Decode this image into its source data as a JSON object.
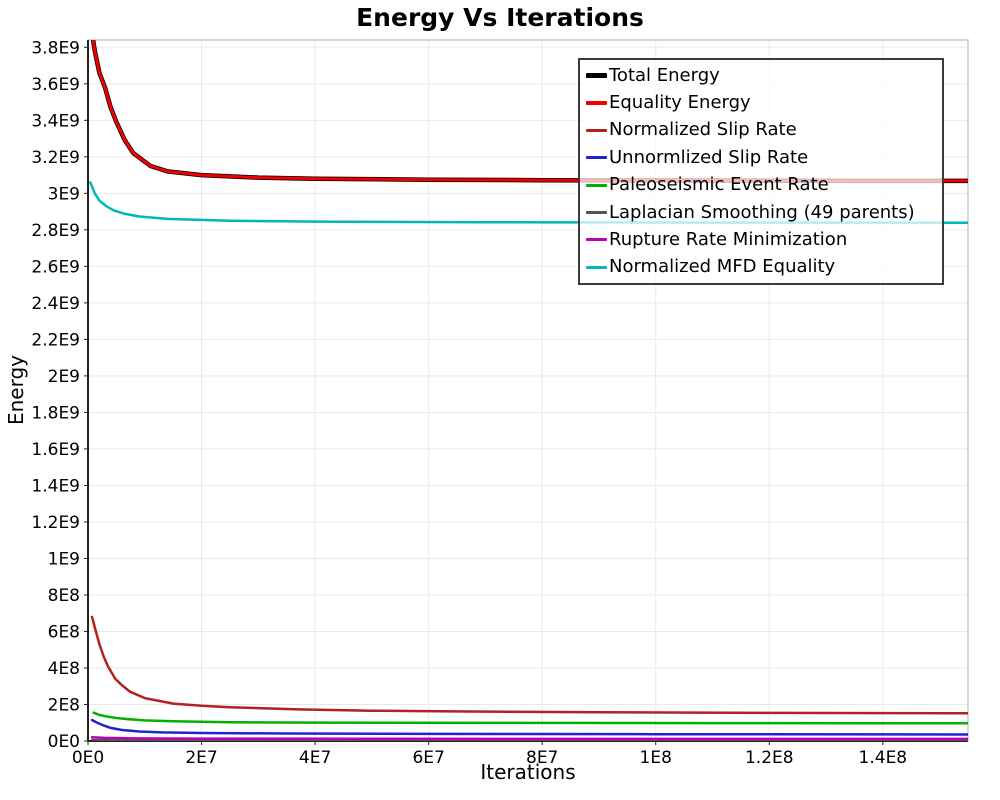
{
  "title": "Energy Vs Iterations",
  "chart_data": {
    "type": "line",
    "title": "Energy Vs Iterations",
    "xlabel": "Iterations",
    "ylabel": "Energy",
    "x_range": [
      0,
      155000000.0
    ],
    "y_range": [
      0,
      3840000000.0
    ],
    "grid": true,
    "legend_position": "top-right",
    "axis_color": "#222222",
    "grid_color": "#e9e9e9",
    "frame_color": "#c8c8c8",
    "x_ticks": [
      {
        "value": 0,
        "label": "0E0"
      },
      {
        "value": 20000000.0,
        "label": "2E7"
      },
      {
        "value": 40000000.0,
        "label": "4E7"
      },
      {
        "value": 60000000.0,
        "label": "6E7"
      },
      {
        "value": 80000000.0,
        "label": "8E7"
      },
      {
        "value": 100000000.0,
        "label": "1E8"
      },
      {
        "value": 120000000.0,
        "label": "1.2E8"
      },
      {
        "value": 140000000.0,
        "label": "1.4E8"
      }
    ],
    "y_ticks": [
      {
        "value": 0,
        "label": "0E0"
      },
      {
        "value": 200000000.0,
        "label": "2E8"
      },
      {
        "value": 400000000.0,
        "label": "4E8"
      },
      {
        "value": 600000000.0,
        "label": "6E8"
      },
      {
        "value": 800000000.0,
        "label": "8E8"
      },
      {
        "value": 1000000000.0,
        "label": "1E9"
      },
      {
        "value": 1200000000.0,
        "label": "1.2E9"
      },
      {
        "value": 1400000000.0,
        "label": "1.4E9"
      },
      {
        "value": 1600000000.0,
        "label": "1.6E9"
      },
      {
        "value": 1800000000.0,
        "label": "1.8E9"
      },
      {
        "value": 2000000000.0,
        "label": "2E9"
      },
      {
        "value": 2200000000.0,
        "label": "2.2E9"
      },
      {
        "value": 2400000000.0,
        "label": "2.4E9"
      },
      {
        "value": 2600000000.0,
        "label": "2.6E9"
      },
      {
        "value": 2800000000.0,
        "label": "2.8E9"
      },
      {
        "value": 3000000000.0,
        "label": "3E9"
      },
      {
        "value": 3200000000.0,
        "label": "3.2E9"
      },
      {
        "value": 3400000000.0,
        "label": "3.4E9"
      },
      {
        "value": 3600000000.0,
        "label": "3.6E9"
      },
      {
        "value": 3800000000.0,
        "label": "3.8E9"
      }
    ],
    "series": [
      {
        "id": "total_energy",
        "label": "Total Energy",
        "color": "#000000",
        "width": 4.5,
        "swatch_height": 5,
        "z": 7,
        "points": [
          [
            900000.0,
            3840000000.0
          ],
          [
            1200000.0,
            3780000000.0
          ],
          [
            2000000.0,
            3660000000.0
          ],
          [
            3000000.0,
            3580000000.0
          ],
          [
            4000000.0,
            3470000000.0
          ],
          [
            5000000.0,
            3390000000.0
          ],
          [
            6500000.0,
            3290000000.0
          ],
          [
            8000000.0,
            3220000000.0
          ],
          [
            11000000.0,
            3150000000.0
          ],
          [
            14000000.0,
            3120000000.0
          ],
          [
            20000000.0,
            3100000000.0
          ],
          [
            30000000.0,
            3086000000.0
          ],
          [
            40000000.0,
            3080000000.0
          ],
          [
            60000000.0,
            3075000000.0
          ],
          [
            80000000.0,
            3072000000.0
          ],
          [
            120000000.0,
            3069000000.0
          ],
          [
            155000000.0,
            3068000000.0
          ]
        ]
      },
      {
        "id": "equality_energy",
        "label": "Equality Energy",
        "color": "#ee0000",
        "width": 3,
        "swatch_height": 4,
        "z": 8,
        "points": [
          [
            900000.0,
            3840000000.0
          ],
          [
            1200000.0,
            3780000000.0
          ],
          [
            2000000.0,
            3660000000.0
          ],
          [
            3000000.0,
            3580000000.0
          ],
          [
            4000000.0,
            3470000000.0
          ],
          [
            5000000.0,
            3390000000.0
          ],
          [
            6500000.0,
            3290000000.0
          ],
          [
            8000000.0,
            3220000000.0
          ],
          [
            11000000.0,
            3150000000.0
          ],
          [
            14000000.0,
            3120000000.0
          ],
          [
            20000000.0,
            3100000000.0
          ],
          [
            30000000.0,
            3086000000.0
          ],
          [
            40000000.0,
            3080000000.0
          ],
          [
            60000000.0,
            3075000000.0
          ],
          [
            80000000.0,
            3072000000.0
          ],
          [
            120000000.0,
            3069000000.0
          ],
          [
            155000000.0,
            3068000000.0
          ]
        ]
      },
      {
        "id": "normalized_slip_rate",
        "label": "Normalized Slip Rate",
        "color": "#b22222",
        "width": 2.5,
        "swatch_height": 3,
        "z": 5,
        "points": [
          [
            700000.0,
            680000000.0
          ],
          [
            1400000.0,
            600000000.0
          ],
          [
            2000000.0,
            530000000.0
          ],
          [
            2800000.0,
            460000000.0
          ],
          [
            3500000.0,
            410000000.0
          ],
          [
            4800000.0,
            340000000.0
          ],
          [
            6000000.0,
            305000000.0
          ],
          [
            7400000.0,
            270000000.0
          ],
          [
            10000000.0,
            235000000.0
          ],
          [
            15000000.0,
            205000000.0
          ],
          [
            20000000.0,
            193000000.0
          ],
          [
            25000000.0,
            185000000.0
          ],
          [
            37000000.0,
            173000000.0
          ],
          [
            50000000.0,
            166000000.0
          ],
          [
            64000000.0,
            162000000.0
          ],
          [
            90000000.0,
            157000000.0
          ],
          [
            120000000.0,
            154000000.0
          ],
          [
            155000000.0,
            152000000.0
          ]
        ]
      },
      {
        "id": "unnormalized_slip_rate",
        "label": "Unnormlized Slip Rate",
        "color": "#2222cc",
        "width": 2.5,
        "swatch_height": 3,
        "z": 3,
        "points": [
          [
            700000.0,
            115000000.0
          ],
          [
            1500000.0,
            102000000.0
          ],
          [
            2500000.0,
            88000000.0
          ],
          [
            4000000.0,
            72000000.0
          ],
          [
            6000000.0,
            60000000.0
          ],
          [
            9000000.0,
            52000000.0
          ],
          [
            13000000.0,
            47000000.0
          ],
          [
            20000000.0,
            44000000.0
          ],
          [
            35000000.0,
            41000000.0
          ],
          [
            60000000.0,
            39000000.0
          ],
          [
            100000000.0,
            37000000.0
          ],
          [
            155000000.0,
            35500000.0
          ]
        ]
      },
      {
        "id": "paleoseismic_event_rate",
        "label": "Paleoseismic Event Rate",
        "color": "#00b200",
        "width": 2.5,
        "swatch_height": 3,
        "z": 4,
        "points": [
          [
            1000000.0,
            155000000.0
          ],
          [
            2000000.0,
            143000000.0
          ],
          [
            3000000.0,
            136000000.0
          ],
          [
            5000000.0,
            126000000.0
          ],
          [
            7000000.0,
            120000000.0
          ],
          [
            10000000.0,
            113000000.0
          ],
          [
            15000000.0,
            108000000.0
          ],
          [
            25000000.0,
            103000000.0
          ],
          [
            40000000.0,
            101000000.0
          ],
          [
            70000000.0,
            99000000.0
          ],
          [
            110000000.0,
            98000000.0
          ],
          [
            155000000.0,
            97000000.0
          ]
        ]
      },
      {
        "id": "laplacian_smoothing",
        "label": "Laplacian Smoothing (49 parents)",
        "color": "#555555",
        "width": 2,
        "swatch_height": 3,
        "z": 1,
        "points": [
          [
            700000.0,
            7000000.0
          ],
          [
            5000000.0,
            5000000.0
          ],
          [
            20000000.0,
            4000000.0
          ],
          [
            155000000.0,
            3500000.0
          ]
        ]
      },
      {
        "id": "rupture_rate_minimization",
        "label": "Rupture Rate Minimization",
        "color": "#bb00bb",
        "width": 2.5,
        "swatch_height": 3,
        "z": 2,
        "points": [
          [
            700000.0,
            21000000.0
          ],
          [
            3000000.0,
            17000000.0
          ],
          [
            8000000.0,
            14500000.0
          ],
          [
            20000000.0,
            13000000.0
          ],
          [
            50000000.0,
            12200000.0
          ],
          [
            100000000.0,
            11700000.0
          ],
          [
            155000000.0,
            11500000.0
          ]
        ]
      },
      {
        "id": "normalized_mfd_equality",
        "label": "Normalized MFD Equality",
        "color": "#00b8b8",
        "width": 2.5,
        "swatch_height": 3,
        "z": 6,
        "points": [
          [
            400000.0,
            3060000000.0
          ],
          [
            1200000.0,
            3000000000.0
          ],
          [
            2000000.0,
            2960000000.0
          ],
          [
            3200000.0,
            2930000000.0
          ],
          [
            4500000.0,
            2907000000.0
          ],
          [
            6500000.0,
            2888000000.0
          ],
          [
            9000000.0,
            2873000000.0
          ],
          [
            14000000.0,
            2860000000.0
          ],
          [
            25000000.0,
            2850000000.0
          ],
          [
            40000000.0,
            2845000000.0
          ],
          [
            70000000.0,
            2842000000.0
          ],
          [
            110000000.0,
            2840000000.0
          ],
          [
            155000000.0,
            2839000000.0
          ]
        ]
      }
    ]
  }
}
